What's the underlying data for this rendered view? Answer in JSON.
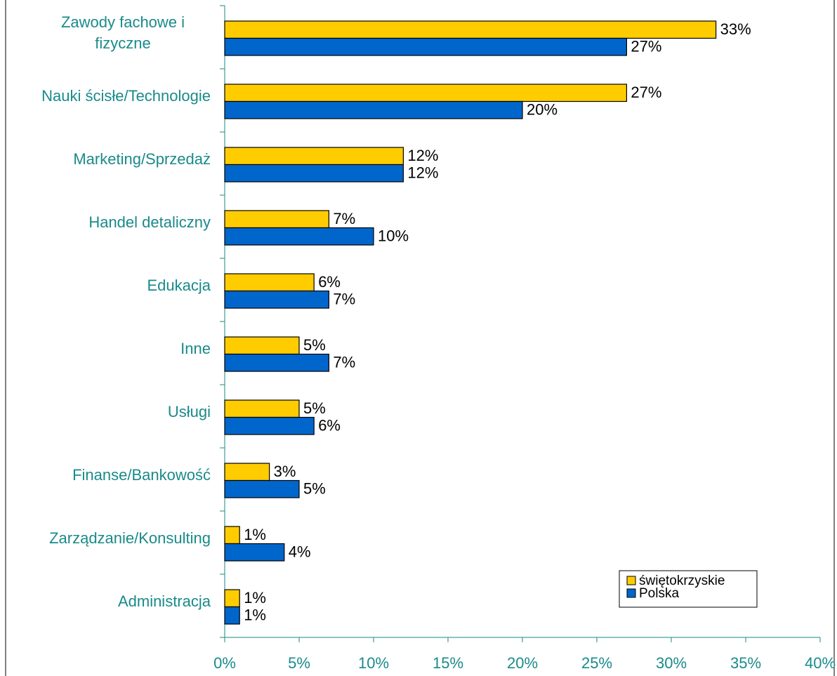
{
  "chart_data": {
    "type": "hbar",
    "categories": [
      "Zawody fachowe i fizyczne",
      "Nauki ścisłe/Technologie",
      "Marketing/Sprzedaż",
      "Handel detaliczny",
      "Edukacja",
      "Inne",
      "Usługi",
      "Finanse/Bankowość",
      "Zarządzanie/Konsulting",
      "Administracja"
    ],
    "series": [
      {
        "name": "świętokrzyskie",
        "color": "#ffcc00",
        "values": [
          33,
          27,
          12,
          7,
          6,
          5,
          5,
          3,
          1,
          1
        ],
        "value_labels": [
          "33%",
          "27%",
          "12%",
          "7%",
          "6%",
          "5%",
          "5%",
          "3%",
          "1%",
          "1%"
        ]
      },
      {
        "name": "Polska",
        "color": "#0066cc",
        "values": [
          27,
          20,
          12,
          10,
          7,
          7,
          6,
          5,
          4,
          1
        ],
        "value_labels": [
          "27%",
          "20%",
          "12%",
          "10%",
          "7%",
          "7%",
          "6%",
          "5%",
          "4%",
          "1%"
        ]
      }
    ],
    "xlim": [
      0,
      40
    ],
    "xticks": [
      {
        "value": 0,
        "label": "0%"
      },
      {
        "value": 5,
        "label": "5%"
      },
      {
        "value": 10,
        "label": "10%"
      },
      {
        "value": 15,
        "label": "15%"
      },
      {
        "value": 20,
        "label": "20%"
      },
      {
        "value": 25,
        "label": "25%"
      },
      {
        "value": 30,
        "label": "30%"
      },
      {
        "value": 35,
        "label": "35%"
      },
      {
        "value": 40,
        "label": "40%"
      }
    ],
    "legend": "lower right"
  }
}
